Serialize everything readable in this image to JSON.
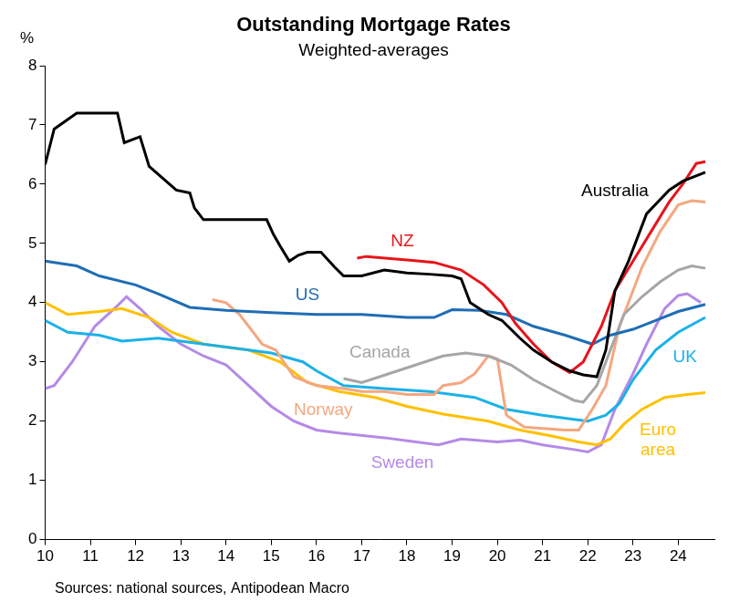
{
  "chart_data": {
    "type": "line",
    "title": "Outstanding Mortgage Rates",
    "subtitle": "Weighted-averages",
    "y_label": "%",
    "source": "Sources: national sources, Antipodean Macro",
    "xlim": [
      10,
      24.8
    ],
    "xticks": [
      10,
      11,
      12,
      13,
      14,
      15,
      16,
      17,
      18,
      19,
      20,
      21,
      22,
      23,
      24
    ],
    "ylim": [
      0,
      8
    ],
    "yticks": [
      0,
      1,
      2,
      3,
      4,
      5,
      6,
      7,
      8
    ],
    "grid": false,
    "series": [
      {
        "name": "Australia",
        "color": "#000000",
        "x": [
          10,
          10.2,
          10.7,
          11.6,
          11.75,
          12.1,
          12.3,
          12.6,
          12.9,
          13.2,
          13.3,
          13.5,
          14.9,
          15.05,
          15.2,
          15.4,
          15.6,
          15.8,
          16.1,
          16.4,
          16.6,
          17,
          17.5,
          18,
          18.5,
          19,
          19.2,
          19.4,
          19.8,
          20.1,
          20.5,
          20.8,
          21.2,
          21.6,
          21.9,
          22.2,
          22.4,
          22.6,
          22.9,
          23.1,
          23.3,
          23.8,
          24.1,
          24.6
        ],
        "values": [
          6.33,
          6.93,
          7.2,
          7.2,
          6.7,
          6.8,
          6.3,
          6.1,
          5.9,
          5.85,
          5.6,
          5.4,
          5.4,
          5.15,
          4.95,
          4.7,
          4.8,
          4.85,
          4.85,
          4.6,
          4.45,
          4.45,
          4.55,
          4.5,
          4.48,
          4.45,
          4.4,
          4.0,
          3.8,
          3.7,
          3.4,
          3.2,
          3.0,
          2.85,
          2.78,
          2.75,
          3.2,
          4.2,
          4.7,
          5.1,
          5.5,
          5.9,
          6.05,
          6.2
        ]
      },
      {
        "name": "NZ",
        "color": "#e8141b",
        "x": [
          16.9,
          17.1,
          18,
          18.6,
          19.2,
          19.7,
          20.1,
          20.4,
          20.8,
          21.2,
          21.6,
          21.9,
          22.3,
          22.6,
          23.0,
          23.4,
          23.8,
          24.1,
          24.4,
          24.6
        ],
        "values": [
          4.75,
          4.78,
          4.72,
          4.68,
          4.55,
          4.3,
          4.0,
          3.65,
          3.3,
          3.0,
          2.82,
          3.0,
          3.6,
          4.2,
          4.7,
          5.2,
          5.7,
          6.0,
          6.35,
          6.38
        ]
      },
      {
        "name": "US",
        "color": "#1f6db5",
        "x": [
          10,
          10.7,
          11.2,
          12,
          12.5,
          13.2,
          14,
          15,
          16,
          17,
          18,
          18.6,
          19,
          19.6,
          20.2,
          20.8,
          21.5,
          21.9,
          22.1,
          22.5,
          23,
          23.5,
          24,
          24.6
        ],
        "values": [
          4.7,
          4.62,
          4.45,
          4.3,
          4.15,
          3.92,
          3.87,
          3.83,
          3.8,
          3.8,
          3.75,
          3.75,
          3.88,
          3.87,
          3.8,
          3.6,
          3.45,
          3.35,
          3.3,
          3.45,
          3.55,
          3.7,
          3.85,
          3.97
        ]
      },
      {
        "name": "Canada",
        "color": "#a6a6a6",
        "x": [
          16.6,
          17,
          17.6,
          18.2,
          18.8,
          19.3,
          19.8,
          20.3,
          20.8,
          21.3,
          21.7,
          21.9,
          22.2,
          22.5,
          22.8,
          23.2,
          23.6,
          24.0,
          24.3,
          24.6
        ],
        "values": [
          2.72,
          2.65,
          2.8,
          2.95,
          3.1,
          3.15,
          3.1,
          2.95,
          2.7,
          2.5,
          2.35,
          2.32,
          2.6,
          3.2,
          3.8,
          4.1,
          4.35,
          4.55,
          4.62,
          4.58
        ]
      },
      {
        "name": "Norway",
        "color": "#f4a77f",
        "x": [
          13.7,
          14.0,
          14.3,
          14.8,
          15.1,
          15.5,
          16.0,
          16.6,
          17,
          17.5,
          18,
          18.6,
          18.8,
          19.2,
          19.5,
          19.8,
          20.0,
          20.2,
          20.6,
          21.5,
          21.8,
          22.1,
          22.4,
          22.7,
          22.9,
          23.2,
          23.6,
          24.0,
          24.3,
          24.6
        ],
        "values": [
          4.05,
          4.0,
          3.8,
          3.3,
          3.2,
          2.75,
          2.6,
          2.55,
          2.5,
          2.5,
          2.45,
          2.45,
          2.6,
          2.65,
          2.8,
          3.1,
          3.05,
          2.1,
          1.9,
          1.85,
          1.85,
          2.2,
          2.6,
          3.6,
          4.0,
          4.6,
          5.2,
          5.65,
          5.72,
          5.7
        ]
      },
      {
        "name": "UK",
        "color": "#1cb1e8",
        "x": [
          10,
          10.5,
          11.2,
          11.7,
          12.5,
          13,
          14,
          15,
          15.7,
          16.0,
          16.6,
          17.5,
          18.5,
          19.5,
          20.2,
          21,
          21.5,
          22,
          22.4,
          22.7,
          23.0,
          23.5,
          24,
          24.6
        ],
        "values": [
          3.7,
          3.5,
          3.45,
          3.35,
          3.4,
          3.35,
          3.25,
          3.15,
          3.0,
          2.85,
          2.6,
          2.55,
          2.5,
          2.4,
          2.2,
          2.1,
          2.05,
          2.0,
          2.1,
          2.3,
          2.7,
          3.2,
          3.5,
          3.75
        ]
      },
      {
        "name": "Euro area",
        "color": "#ffc000",
        "x": [
          10,
          10.5,
          11.2,
          11.7,
          12.3,
          12.8,
          13.5,
          14.5,
          15.2,
          15.8,
          16.5,
          17.3,
          18,
          18.8,
          19.8,
          20.5,
          21.2,
          21.8,
          22.2,
          22.5,
          22.8,
          23.2,
          23.7,
          24.2,
          24.6
        ],
        "values": [
          4.0,
          3.8,
          3.85,
          3.9,
          3.75,
          3.5,
          3.3,
          3.2,
          3.0,
          2.65,
          2.5,
          2.4,
          2.25,
          2.12,
          2.0,
          1.85,
          1.75,
          1.65,
          1.6,
          1.7,
          1.95,
          2.2,
          2.4,
          2.45,
          2.48
        ]
      },
      {
        "name": "Sweden",
        "color": "#b58ae6",
        "x": [
          10,
          10.2,
          10.6,
          11.1,
          11.6,
          11.8,
          12.1,
          12.5,
          13.0,
          13.5,
          14.0,
          14.5,
          15.0,
          15.5,
          16.0,
          16.5,
          17.5,
          18.2,
          18.7,
          19.2,
          20,
          20.5,
          21,
          21.7,
          22,
          22.3,
          22.6,
          23.0,
          23.3,
          23.7,
          24.0,
          24.2,
          24.5
        ],
        "values": [
          2.55,
          2.6,
          3.0,
          3.6,
          3.95,
          4.1,
          3.9,
          3.6,
          3.3,
          3.1,
          2.95,
          2.6,
          2.25,
          2.0,
          1.85,
          1.8,
          1.72,
          1.65,
          1.6,
          1.7,
          1.65,
          1.68,
          1.6,
          1.52,
          1.48,
          1.6,
          2.2,
          2.8,
          3.3,
          3.9,
          4.12,
          4.15,
          4.0
        ]
      }
    ]
  }
}
